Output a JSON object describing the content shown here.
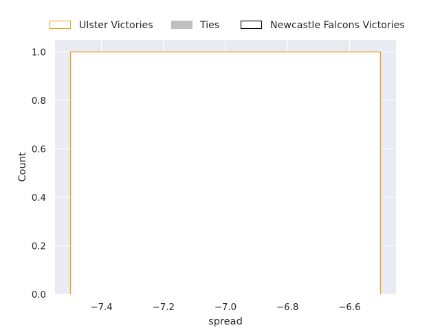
{
  "chart_data": {
    "type": "histogram",
    "title": "",
    "xlabel": "spread",
    "ylabel": "Count",
    "xlim": [
      -7.55,
      -6.45
    ],
    "ylim": [
      0,
      1.05
    ],
    "xticks": [
      -7.4,
      -7.2,
      -7.0,
      -6.8,
      -6.6
    ],
    "xtick_labels": [
      "−7.4",
      "−7.2",
      "−7.0",
      "−6.8",
      "−6.6"
    ],
    "yticks": [
      0.0,
      0.2,
      0.4,
      0.6,
      0.8,
      1.0
    ],
    "ytick_labels": [
      "0.0",
      "0.2",
      "0.4",
      "0.6",
      "0.8",
      "1.0"
    ],
    "grid": true,
    "legend_position": "top",
    "series": [
      {
        "name": "Ulster Victories",
        "style": "step-outline",
        "color": "#e8a020",
        "bins": [
          {
            "x0": -7.5,
            "x1": -6.5,
            "count": 1
          }
        ]
      },
      {
        "name": "Ties",
        "style": "filled",
        "color": "#c0c0c0",
        "bins": []
      },
      {
        "name": "Newcastle Falcons Victories",
        "style": "outline",
        "color": "#000000",
        "bins": []
      }
    ]
  }
}
